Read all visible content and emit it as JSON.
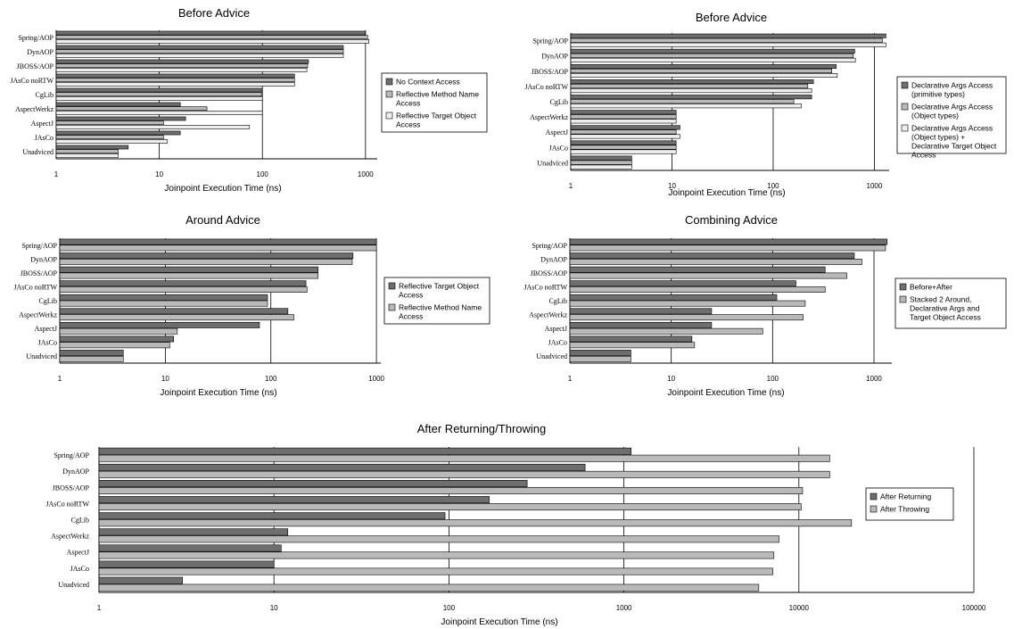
{
  "colors": {
    "dark": "#6e6e6e",
    "medium": "#b9b9b9",
    "light": "#eeeeee",
    "axis": "#000000",
    "grid": "#000000"
  },
  "chart_data": [
    {
      "type": "bar",
      "orientation": "horizontal",
      "title": "Before Advice",
      "xlabel": "Joinpoint Execution Time (ns)",
      "xscale": "log",
      "xlim": [
        1,
        1300
      ],
      "xticks": [
        1,
        10,
        100,
        1000
      ],
      "grid": true,
      "legend_position": "right",
      "categories": [
        "Spring/AOP",
        "DynAOP",
        "JBOSS/AOP",
        "JAsCo noRTW",
        "CgLib",
        "AspectWerkz",
        "AspectJ",
        "JAsCo",
        "Unadviced"
      ],
      "series": [
        {
          "name": "No Context Access",
          "color": "dark",
          "values": [
            1000,
            610,
            280,
            205,
            98,
            16,
            18,
            16,
            5
          ]
        },
        {
          "name": "Reflective Method Name Access",
          "color": "medium",
          "values": [
            1050,
            610,
            275,
            205,
            98,
            29,
            11,
            11,
            4
          ]
        },
        {
          "name": "Reflective Target Object Access",
          "color": "light",
          "values": [
            1080,
            610,
            270,
            205,
            100,
            100,
            75,
            12,
            4
          ]
        }
      ]
    },
    {
      "type": "bar",
      "orientation": "horizontal",
      "title": "Before Advice",
      "xlabel": "Joinpoint Execution Time (ns)",
      "xscale": "log",
      "xlim": [
        1,
        1400
      ],
      "xticks": [
        1,
        10,
        100,
        1000
      ],
      "grid": true,
      "legend_position": "right",
      "categories": [
        "Spring/AOP",
        "DynAOP",
        "JBOSS/AOP",
        "JAsCo noRTW",
        "CgLib",
        "AspectWerkz",
        "AspectJ",
        "JAsCo",
        "Unadviced"
      ],
      "series": [
        {
          "name": "Declarative Args Access (primitive types)",
          "color": "dark",
          "values": [
            1300,
            640,
            420,
            250,
            240,
            11,
            12,
            11,
            4
          ]
        },
        {
          "name": "Declarative Args Access (Object types)",
          "color": "medium",
          "values": [
            1200,
            620,
            380,
            220,
            160,
            11,
            11,
            11,
            4
          ]
        },
        {
          "name": "Declarative Args Access (Object types) + Declarative Target Object Access",
          "color": "light",
          "values": [
            1300,
            650,
            430,
            240,
            190,
            11,
            12,
            11,
            4
          ]
        }
      ]
    },
    {
      "type": "bar",
      "orientation": "horizontal",
      "title": "Around Advice",
      "xlabel": "Joinpoint Execution Time (ns)",
      "xscale": "log",
      "xlim": [
        1,
        1100
      ],
      "xticks": [
        1,
        10,
        100,
        1000
      ],
      "grid": true,
      "legend_position": "right",
      "categories": [
        "Spring/AOP",
        "DynAOP",
        "JBOSS/AOP",
        "JAsCo noRTW",
        "CgLib",
        "AspectWerkz",
        "AspectJ",
        "JAsCo",
        "Unadviced"
      ],
      "series": [
        {
          "name": "Reflective Target Object Access",
          "color": "dark",
          "values": [
            1000,
            600,
            280,
            215,
            93,
            145,
            78,
            12,
            4
          ]
        },
        {
          "name": "Reflective Method Name Access",
          "color": "medium",
          "values": [
            1000,
            590,
            280,
            220,
            93,
            165,
            13,
            11,
            4
          ]
        }
      ]
    },
    {
      "type": "bar",
      "orientation": "horizontal",
      "title": "Combining Advice",
      "xlabel": "Joinpoint Execution Time (ns)",
      "xscale": "log",
      "xlim": [
        1,
        1500
      ],
      "xticks": [
        1,
        10,
        100,
        1000
      ],
      "grid": true,
      "legend_position": "right",
      "categories": [
        "Spring/AOP",
        "DynAOP",
        "JBOSS/AOP",
        "JAsCo noRTW",
        "CgLib",
        "AspectWerkz",
        "AspectJ",
        "JAsCo",
        "Unadviced"
      ],
      "series": [
        {
          "name": "Before+After",
          "color": "dark",
          "values": [
            1350,
            640,
            330,
            170,
            110,
            25,
            25,
            16,
            4
          ]
        },
        {
          "name": "Stacked 2 Around, Declarative Args and Target Object Access",
          "color": "medium",
          "values": [
            1300,
            760,
            540,
            330,
            210,
            200,
            80,
            17,
            4
          ]
        }
      ]
    },
    {
      "type": "bar",
      "orientation": "horizontal",
      "title": "After Returning/Throwing",
      "xlabel": "Joinpoint Execution Time (ns)",
      "xscale": "log",
      "xlim": [
        1,
        100000
      ],
      "xticks": [
        1,
        10,
        100,
        1000,
        10000,
        100000
      ],
      "grid": true,
      "legend_position": "right",
      "categories": [
        "Spring/AOP",
        "DynAOP",
        "JBOSS/AOP",
        "JAsCo noRTW",
        "CgLib",
        "AspectWerkz",
        "AspectJ",
        "JAsCo",
        "Unadviced"
      ],
      "series": [
        {
          "name": "After Returning",
          "color": "dark",
          "values": [
            1100,
            600,
            280,
            170,
            95,
            12,
            11,
            10,
            3
          ]
        },
        {
          "name": "After Throwing",
          "color": "medium",
          "values": [
            15000,
            15000,
            10500,
            10300,
            20000,
            7700,
            7200,
            7100,
            5900
          ]
        }
      ]
    }
  ]
}
